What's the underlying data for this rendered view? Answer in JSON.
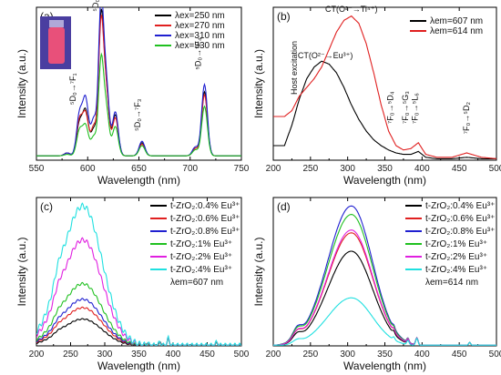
{
  "chart_data": [
    {
      "panel": "(a)",
      "type": "line",
      "xlabel": "Wavelength (nm)",
      "ylabel": "Intensity (a.u.)",
      "xlim": [
        550,
        750
      ],
      "ylim": [
        0,
        1.05
      ],
      "xticks": [
        550,
        600,
        650,
        700,
        750
      ],
      "yticks_shown": false,
      "legend_position": "top-right",
      "annotations": [
        "⁵D₀→⁷F₁",
        "⁵D₀→⁷F₂",
        "⁵D₀→⁷F₃",
        "⁵D₀→⁷F₄"
      ],
      "inset": "photo of glowing vial",
      "series": [
        {
          "name": "λex=250 nm",
          "color": "#000000",
          "peaks": [
            [
              580,
              0.02
            ],
            [
              592,
              0.22
            ],
            [
              598,
              0.3
            ],
            [
              606,
              0.18
            ],
            [
              613,
              0.9
            ],
            [
              618,
              0.45
            ],
            [
              627,
              0.28
            ],
            [
              653,
              0.09
            ],
            [
              705,
              0.05
            ],
            [
              714,
              0.44
            ]
          ]
        },
        {
          "name": "λex=270 nm",
          "color": "#e02020",
          "peaks": [
            [
              580,
              0.02
            ],
            [
              592,
              0.24
            ],
            [
              598,
              0.28
            ],
            [
              606,
              0.2
            ],
            [
              613,
              0.86
            ],
            [
              618,
              0.44
            ],
            [
              627,
              0.26
            ],
            [
              653,
              0.08
            ],
            [
              705,
              0.05
            ],
            [
              714,
              0.42
            ]
          ]
        },
        {
          "name": "λex=310 nm",
          "color": "#2020d0",
          "peaks": [
            [
              580,
              0.02
            ],
            [
              592,
              0.28
            ],
            [
              598,
              0.38
            ],
            [
              606,
              0.25
            ],
            [
              613,
              1.0
            ],
            [
              618,
              0.5
            ],
            [
              627,
              0.3
            ],
            [
              653,
              0.1
            ],
            [
              705,
              0.06
            ],
            [
              714,
              0.49
            ]
          ]
        },
        {
          "name": "λex=330 nm",
          "color": "#20c020",
          "peaks": [
            [
              580,
              0.01
            ],
            [
              592,
              0.17
            ],
            [
              598,
              0.2
            ],
            [
              606,
              0.13
            ],
            [
              613,
              0.62
            ],
            [
              618,
              0.32
            ],
            [
              627,
              0.2
            ],
            [
              653,
              0.07
            ],
            [
              705,
              0.04
            ],
            [
              714,
              0.34
            ]
          ]
        }
      ]
    },
    {
      "panel": "(b)",
      "type": "line",
      "xlabel": "Wavelength (nm)",
      "ylabel": "Intensity (a.u.)",
      "xlim": [
        200,
        500
      ],
      "ylim": [
        0,
        1.05
      ],
      "xticks": [
        200,
        250,
        300,
        350,
        400,
        450,
        500
      ],
      "yticks_shown": false,
      "legend_position": "top-right",
      "annotations": [
        "Host excitation",
        "CT(O²⁻→Ti⁴⁺)",
        "CT(O²⁻→Eu³⁺)",
        "⁷F₀→⁵D₄",
        "⁷F₀→⁵G₃",
        "⁷F₀→⁵L₆",
        "⁷F₀→⁵D₂"
      ],
      "series": [
        {
          "name": "λem=607 nm",
          "color": "#000000",
          "x": [
            215,
            225,
            235,
            245,
            255,
            265,
            275,
            285,
            295,
            305,
            315,
            325,
            335,
            345,
            355,
            365,
            375,
            385,
            395,
            405,
            420,
            440,
            460,
            480,
            500
          ],
          "y": [
            0.1,
            0.24,
            0.42,
            0.56,
            0.64,
            0.68,
            0.66,
            0.6,
            0.5,
            0.38,
            0.28,
            0.2,
            0.14,
            0.1,
            0.07,
            0.05,
            0.04,
            0.04,
            0.06,
            0.02,
            0.01,
            0.01,
            0.02,
            0.01,
            0.01
          ]
        },
        {
          "name": "λem=614 nm",
          "color": "#e02020",
          "x": [
            215,
            225,
            235,
            245,
            255,
            265,
            275,
            285,
            295,
            305,
            315,
            325,
            335,
            345,
            355,
            365,
            375,
            385,
            395,
            405,
            420,
            440,
            460,
            480,
            500
          ],
          "y": [
            0.3,
            0.34,
            0.44,
            0.5,
            0.56,
            0.64,
            0.76,
            0.88,
            0.96,
            0.99,
            0.94,
            0.8,
            0.6,
            0.38,
            0.2,
            0.1,
            0.07,
            0.08,
            0.12,
            0.04,
            0.02,
            0.02,
            0.05,
            0.02,
            0.01
          ]
        }
      ]
    },
    {
      "panel": "(c)",
      "type": "line",
      "xlabel": "Wavelength (nm)",
      "ylabel": "Intensity (a.u.)",
      "xlim": [
        200,
        500
      ],
      "ylim": [
        0,
        1.05
      ],
      "xticks": [
        200,
        250,
        300,
        350,
        400,
        450,
        500
      ],
      "yticks_shown": false,
      "legend_position": "top-right",
      "legend_note": "λem=607 nm",
      "series": [
        {
          "name": "t-ZrO₂:0.4% Eu³⁺",
          "color": "#000000",
          "peak": 0.19
        },
        {
          "name": "t-ZrO₂:0.6% Eu³⁺",
          "color": "#e02020",
          "peak": 0.27
        },
        {
          "name": "t-ZrO₂:0.8% Eu³⁺",
          "color": "#2020d0",
          "peak": 0.33
        },
        {
          "name": "t-ZrO₂:1% Eu³⁺",
          "color": "#20c020",
          "peak": 0.44
        },
        {
          "name": "t-ZrO₂:2% Eu³⁺",
          "color": "#e020e0",
          "peak": 0.75
        },
        {
          "name": "t-ZrO₂:4% Eu³⁺",
          "color": "#20e0e0",
          "peak": 0.99
        }
      ]
    },
    {
      "panel": "(d)",
      "type": "line",
      "xlabel": "Wavelength (nm)",
      "ylabel": "Intensity (a.u.)",
      "xlim": [
        200,
        500
      ],
      "ylim": [
        0,
        1.05
      ],
      "xticks": [
        200,
        250,
        300,
        350,
        400,
        450,
        500
      ],
      "yticks_shown": false,
      "legend_position": "top-right",
      "legend_note": "λem=614 nm",
      "series": [
        {
          "name": "t-ZrO₂:0.4% Eu³⁺",
          "color": "#000000",
          "peak": 0.67
        },
        {
          "name": "t-ZrO₂:0.6% Eu³⁺",
          "color": "#e02020",
          "peak": 0.8
        },
        {
          "name": "t-ZrO₂:0.8% Eu³⁺",
          "color": "#2020d0",
          "peak": 0.99
        },
        {
          "name": "t-ZrO₂:1% Eu³⁺",
          "color": "#20c020",
          "peak": 0.93
        },
        {
          "name": "t-ZrO₂:2% Eu³⁺",
          "color": "#e020e0",
          "peak": 0.82
        },
        {
          "name": "t-ZrO₂:4% Eu³⁺",
          "color": "#20e0e0",
          "peak": 0.34
        }
      ]
    }
  ]
}
